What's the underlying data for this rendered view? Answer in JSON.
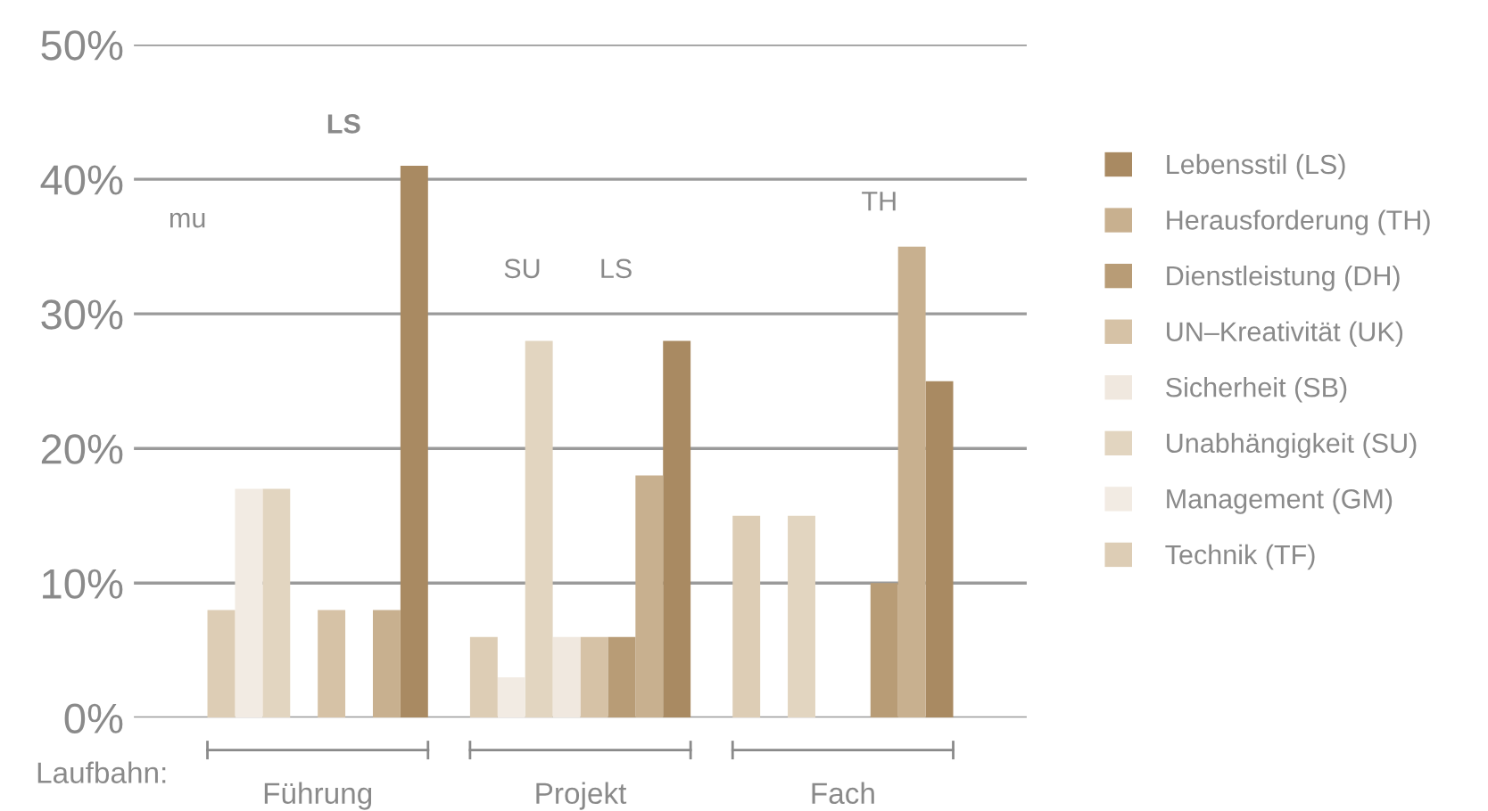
{
  "chart_data": {
    "type": "bar",
    "categories": [
      "Führung",
      "Projekt",
      "Fach"
    ],
    "xlabel": "Laufbahn:",
    "ylim": [
      0,
      50
    ],
    "yticks": [
      {
        "value": 0,
        "label": "0%"
      },
      {
        "value": 10,
        "label": "10%"
      },
      {
        "value": 20,
        "label": "20%"
      },
      {
        "value": 30,
        "label": "30%"
      },
      {
        "value": 40,
        "label": "40%"
      },
      {
        "value": 50,
        "label": "50%"
      }
    ],
    "grid": "y",
    "legend": "right",
    "series": [
      {
        "name": "Lebensstil (LS)",
        "color": "#a98a62",
        "values": [
          41,
          28,
          25
        ]
      },
      {
        "name": "Herausforderung (TH)",
        "color": "#c8b08f",
        "values": [
          8,
          18,
          35
        ]
      },
      {
        "name": "Dienstleistung (DH)",
        "color": "#b89c76",
        "values": [
          0,
          6,
          10
        ]
      },
      {
        "name": "UN–Kreativität (UK)",
        "color": "#d6c2a6",
        "values": [
          8,
          6,
          0
        ]
      },
      {
        "name": "Sicherheit (SB)",
        "color": "#f0e8df",
        "values": [
          0,
          6,
          0
        ]
      },
      {
        "name": "Unabhängigkeit (SU)",
        "color": "#e2d5c0",
        "values": [
          17,
          28,
          15
        ]
      },
      {
        "name": "Management (GM)",
        "color": "#f2ebe3",
        "values": [
          17,
          3,
          0
        ]
      },
      {
        "name": "Technik (TF)",
        "color": "#ddcdb5",
        "values": [
          8,
          6,
          15
        ]
      }
    ],
    "annotations": [
      "mu",
      "LS",
      "SU",
      "LS",
      "TH"
    ]
  }
}
